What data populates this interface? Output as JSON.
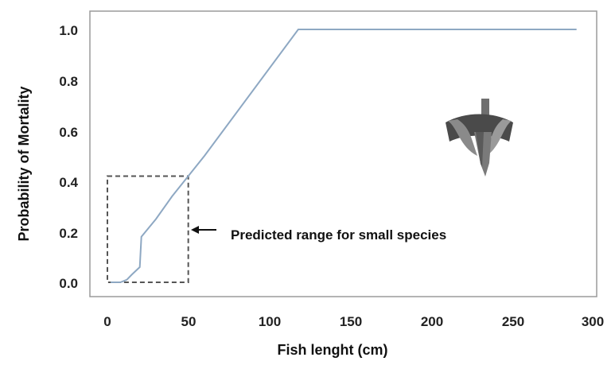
{
  "chart_data": {
    "type": "line",
    "xlabel": "Fish lenght (cm)",
    "ylabel": "Probability of Mortality",
    "xlim": [
      0,
      300
    ],
    "ylim": [
      0,
      1.0
    ],
    "x_ticks": [
      "0",
      "50",
      "100",
      "150",
      "200",
      "250",
      "300"
    ],
    "y_ticks": [
      "0.0",
      "0.2",
      "0.4",
      "0.6",
      "0.8",
      "1.0"
    ],
    "grid": false,
    "series": [
      {
        "color": "#8ea8c3",
        "points": [
          [
            2,
            0.0
          ],
          [
            8,
            0.0
          ],
          [
            12,
            0.01
          ],
          [
            15,
            0.03
          ],
          [
            20,
            0.06
          ],
          [
            21,
            0.18
          ],
          [
            30,
            0.25
          ],
          [
            40,
            0.34
          ],
          [
            50,
            0.42
          ],
          [
            60,
            0.5
          ],
          [
            118,
            1.0
          ],
          [
            290,
            1.0
          ]
        ]
      }
    ],
    "annotations": [
      {
        "text": "Predicted range for small species",
        "box_x": [
          0,
          50
        ],
        "box_y": [
          0,
          0.42
        ],
        "box_style": "dashed",
        "box_color": "#555555"
      }
    ],
    "icon": "turbine-icon"
  }
}
